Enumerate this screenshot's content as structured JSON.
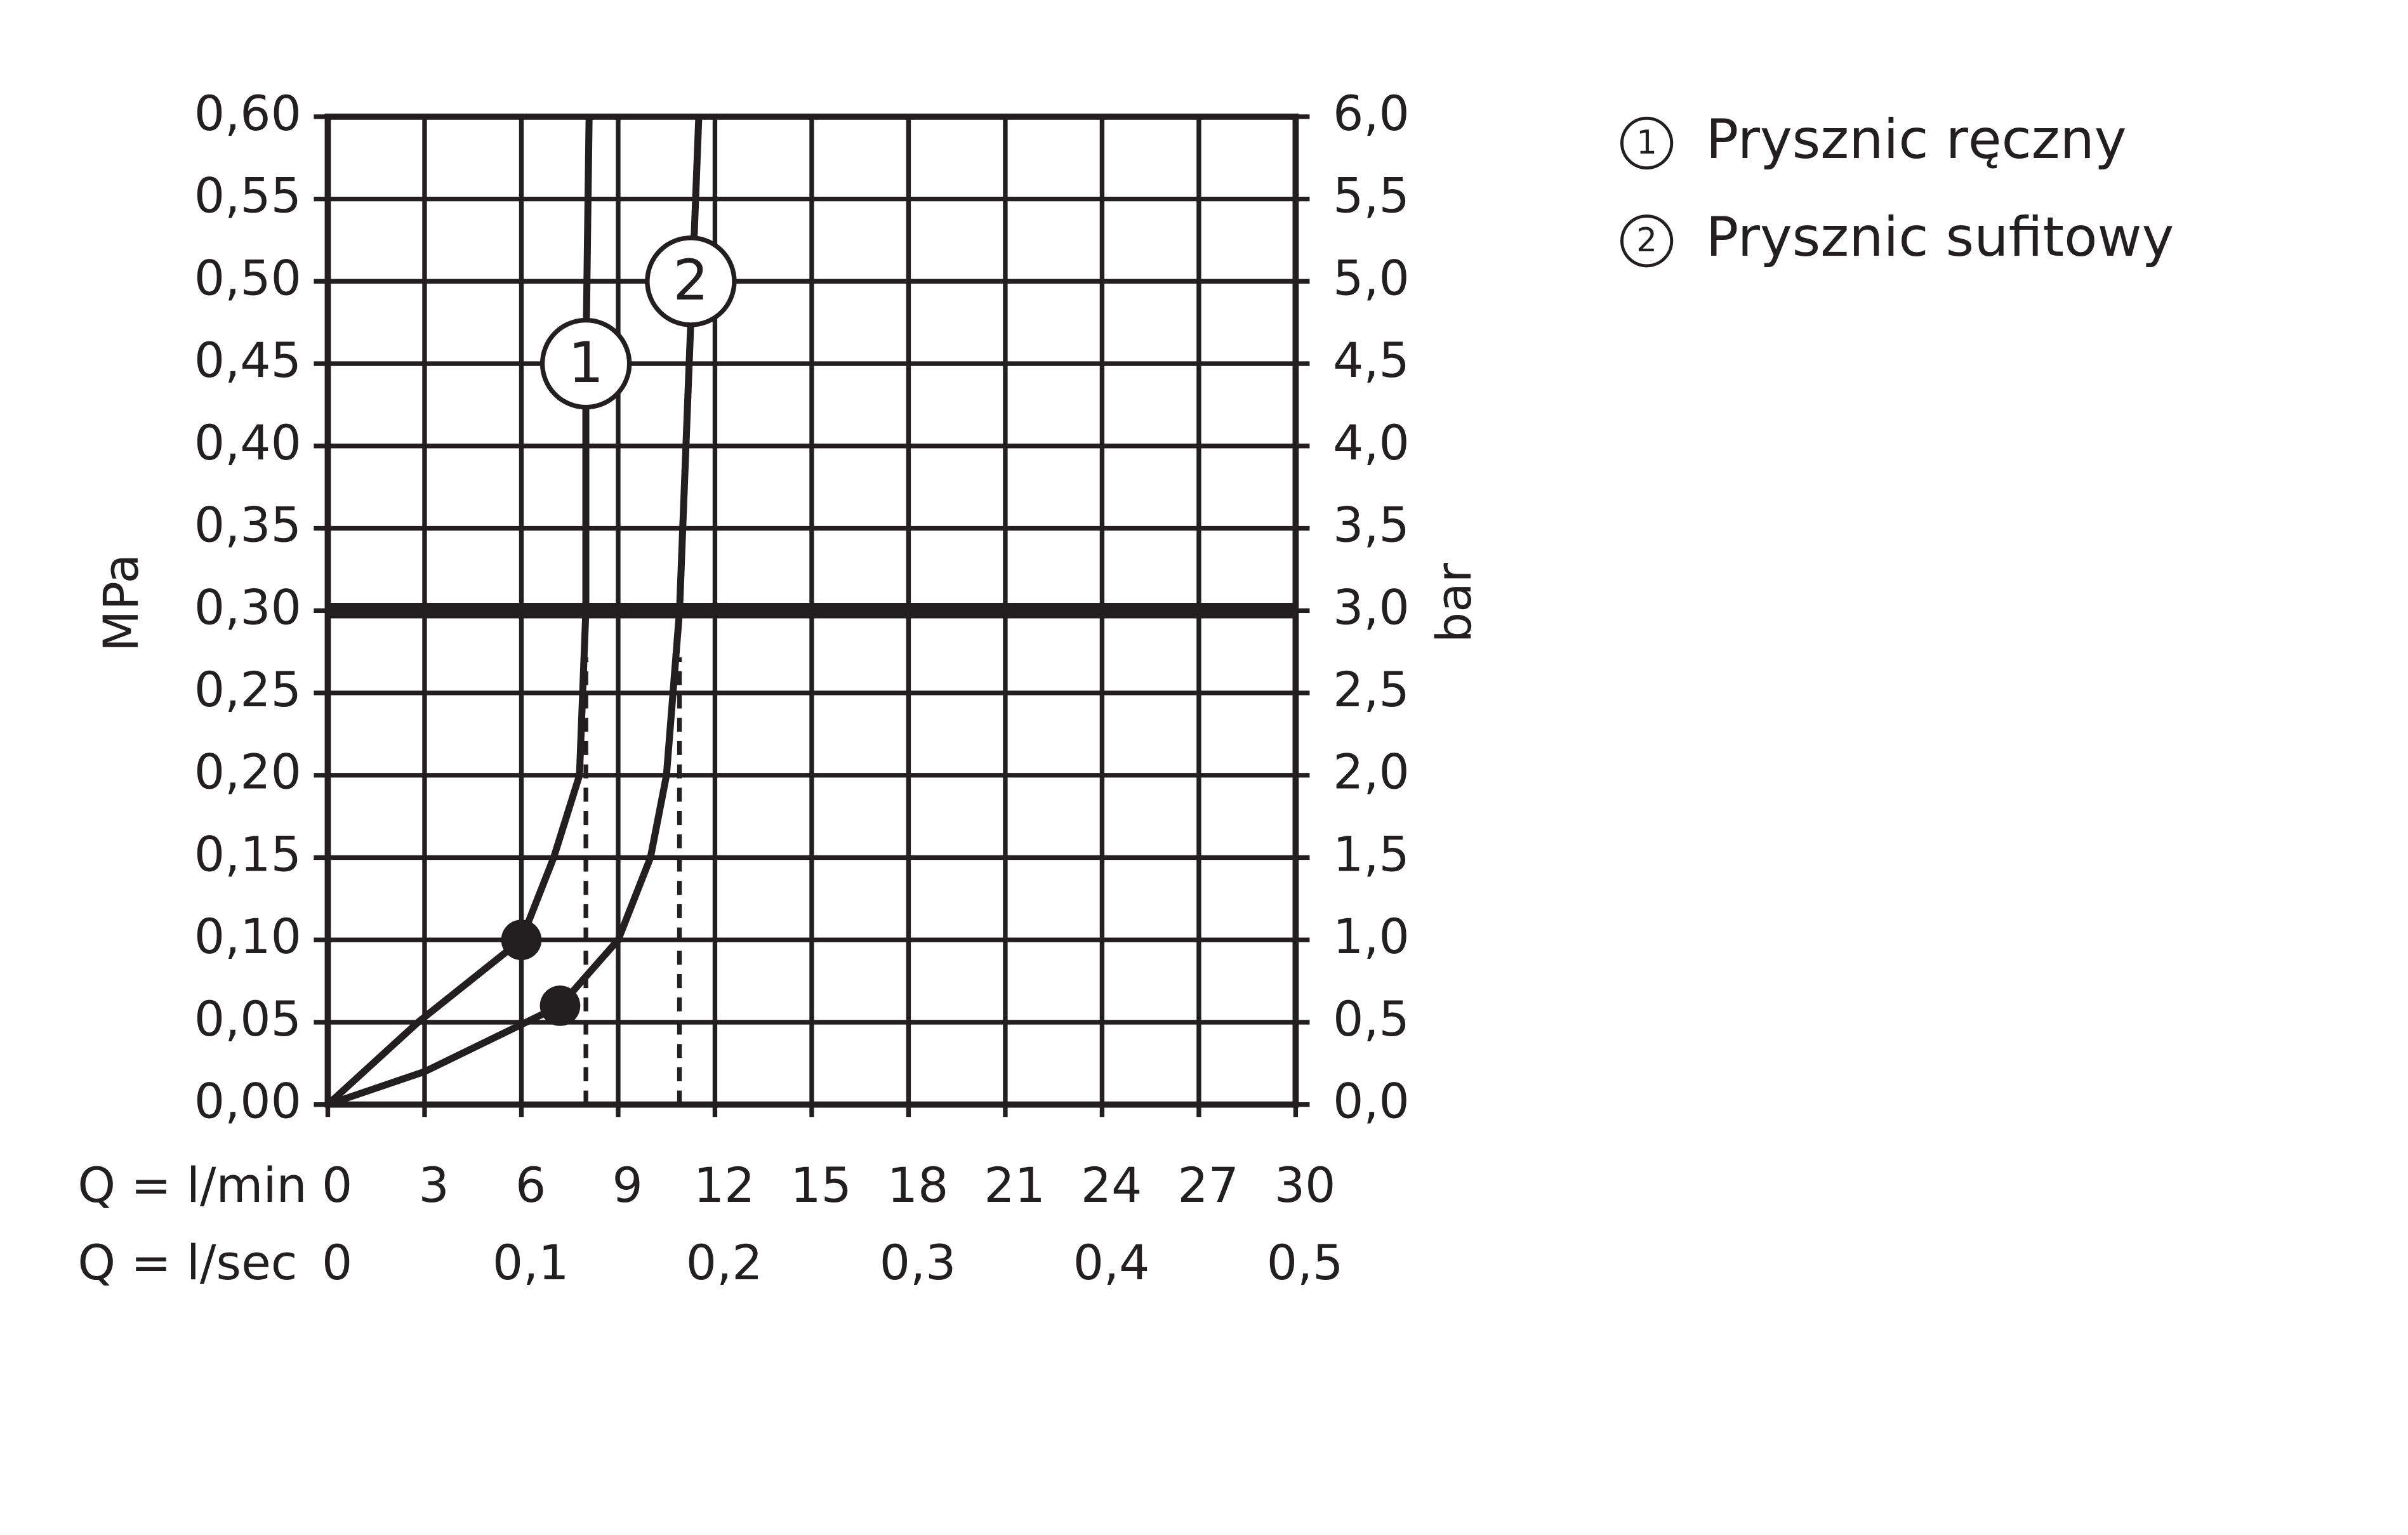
{
  "chart_data": {
    "type": "line",
    "xlabel": "Q = l/min",
    "x2label": "Q = l/sec",
    "ylabel": "MPa",
    "y2label": "bar",
    "xlim": [
      0,
      30
    ],
    "xticks": [
      0,
      3,
      6,
      9,
      12,
      15,
      18,
      21,
      24,
      27,
      30
    ],
    "x2lim": [
      0,
      0.5
    ],
    "x2ticks": [
      0,
      {
        "value": 0.1,
        "label": "0,1"
      },
      {
        "value": 0.2,
        "label": "0,2"
      },
      {
        "value": 0.3,
        "label": "0,3"
      },
      {
        "value": 0.4,
        "label": "0,4"
      },
      {
        "value": 0.5,
        "label": "0,5"
      }
    ],
    "ylim": [
      0,
      0.6
    ],
    "yticks": [
      {
        "value": 0,
        "label": "0,00"
      },
      {
        "value": 0.05,
        "label": "0,05"
      },
      {
        "value": 0.1,
        "label": "0,10"
      },
      {
        "value": 0.15,
        "label": "0,15"
      },
      {
        "value": 0.2,
        "label": "0,20"
      },
      {
        "value": 0.25,
        "label": "0,25"
      },
      {
        "value": 0.3,
        "label": "0,30"
      },
      {
        "value": 0.35,
        "label": "0,35"
      },
      {
        "value": 0.4,
        "label": "0,40"
      },
      {
        "value": 0.45,
        "label": "0,45"
      },
      {
        "value": 0.5,
        "label": "0,50"
      },
      {
        "value": 0.55,
        "label": "0,55"
      },
      {
        "value": 0.6,
        "label": "0,60"
      }
    ],
    "y2lim": [
      0,
      6
    ],
    "y2ticks": [
      {
        "value": 0,
        "label": "0,0"
      },
      {
        "value": 0.5,
        "label": "0,5"
      },
      {
        "value": 1,
        "label": "1,0"
      },
      {
        "value": 1.5,
        "label": "1,5"
      },
      {
        "value": 2,
        "label": "2,0"
      },
      {
        "value": 2.5,
        "label": "2,5"
      },
      {
        "value": 3,
        "label": "3,0"
      },
      {
        "value": 3.5,
        "label": "3,5"
      },
      {
        "value": 4,
        "label": "4,0"
      },
      {
        "value": 4.5,
        "label": "4,5"
      },
      {
        "value": 5,
        "label": "5,0"
      },
      {
        "value": 5.5,
        "label": "5,5"
      },
      {
        "value": 6,
        "label": "6,0"
      }
    ],
    "grid": true,
    "reference_y": 0.3,
    "color": "#231f20",
    "series": [
      {
        "name": "Prysznic ręczny",
        "label": "1",
        "color": "#231f20",
        "x": [
          0,
          2.8,
          6,
          7,
          7.8,
          8.0,
          8.0,
          8.1
        ],
        "values": [
          0,
          0.05,
          0.1,
          0.15,
          0.2,
          0.3,
          0.45,
          0.6
        ]
      },
      {
        "name": "Prysznic sufitowy",
        "label": "2",
        "color": "#231f20",
        "x": [
          0,
          3,
          7.2,
          9,
          10,
          10.5,
          10.9,
          11.2,
          11.3,
          11.5
        ],
        "values": [
          0,
          0.02,
          0.06,
          0.1,
          0.15,
          0.2,
          0.3,
          0.45,
          0.5,
          0.6
        ]
      }
    ]
  }
}
